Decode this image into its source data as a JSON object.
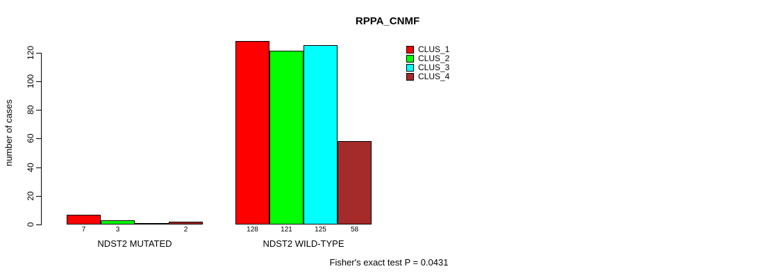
{
  "title": "RPPA_CNMF",
  "caption": "Fisher's exact test P = 0.0431",
  "chart_data": {
    "type": "bar",
    "grouped": true,
    "title": "RPPA_CNMF",
    "xlabel": "",
    "ylabel": "number of cases",
    "categories": [
      "NDST2 MUTATED",
      "NDST2 WILD-TYPE"
    ],
    "series": [
      {
        "name": "CLUS_1",
        "color": "#ff0000",
        "values": [
          7,
          128
        ]
      },
      {
        "name": "CLUS_2",
        "color": "#00ff00",
        "values": [
          3,
          121
        ]
      },
      {
        "name": "CLUS_3",
        "color": "#00ffff",
        "values": [
          0,
          125
        ]
      },
      {
        "name": "CLUS_4",
        "color": "#a52a2a",
        "values": [
          2,
          58
        ]
      }
    ],
    "bar_labels": [
      [
        "7",
        "3",
        "",
        "2"
      ],
      [
        "128",
        "121",
        "125",
        "58"
      ]
    ],
    "yticks": [
      0,
      20,
      40,
      60,
      80,
      100,
      120
    ],
    "ylim": [
      0,
      130
    ],
    "grid": false,
    "legend_position": "top-right",
    "annotation": "Fisher's exact test P = 0.0431",
    "axis_color": "#000000",
    "background_color": "#ffffff"
  }
}
